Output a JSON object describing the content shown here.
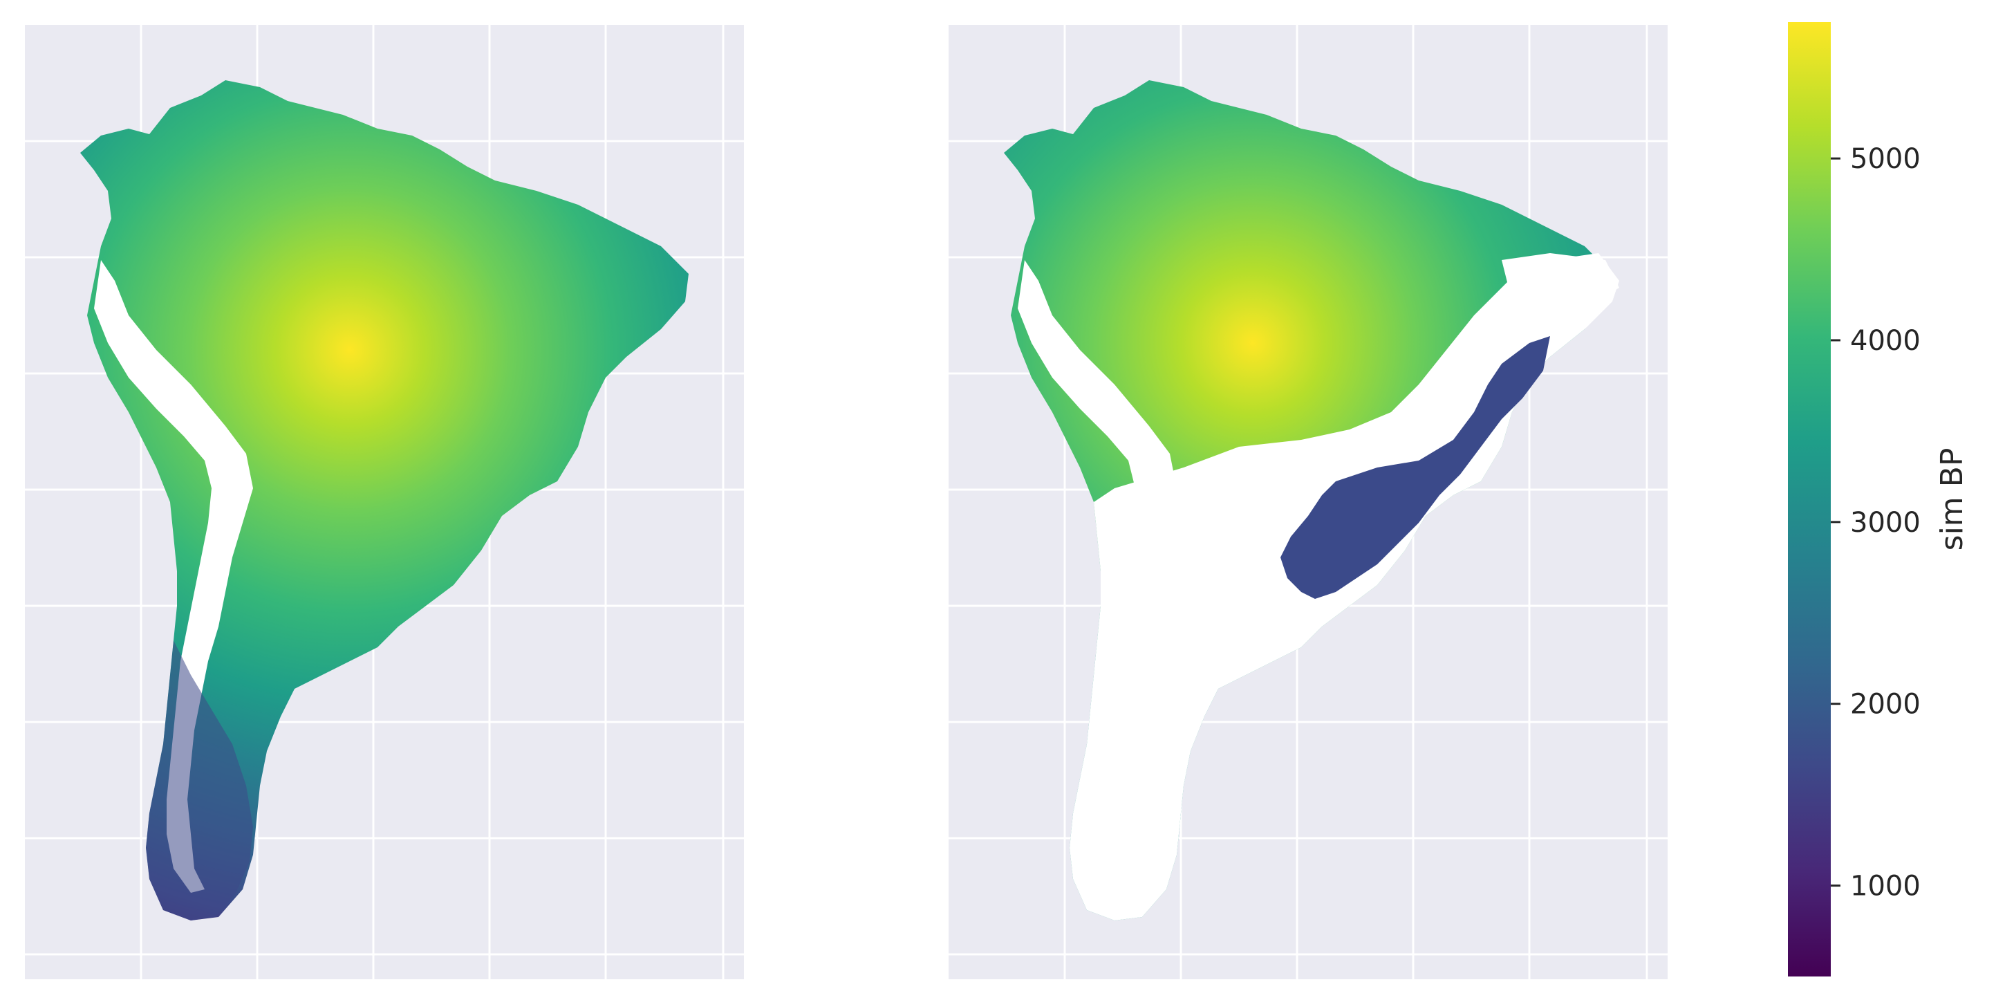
{
  "chart_data": [
    {
      "type": "heatmap",
      "panel": "left",
      "description_of_field": "simulated arrival age over South America land cells",
      "grid": true,
      "value_range": [
        500,
        5750
      ],
      "peak_value": 5750,
      "peak_region": "central-west Amazon",
      "edge_values": {
        "north_coast": 3900,
        "east_brazil": 3600,
        "patagonia": 1700
      }
    },
    {
      "type": "heatmap",
      "panel": "right",
      "grid": true,
      "value_range": [
        500,
        5750
      ],
      "peak_value": 5700,
      "peak_region": "central-west Amazon",
      "southeast_region_value": 1900
    }
  ],
  "colorbar": {
    "label": "sim BP",
    "ticks": [
      1000,
      2000,
      3000,
      4000,
      5000
    ],
    "tick_labels": [
      "1000",
      "2000",
      "3000",
      "4000",
      "5000"
    ],
    "vmin": 500,
    "vmax": 5750,
    "colormap": "viridis"
  },
  "colors": {
    "axes_background": "#eaeaf2",
    "grid": "#ffffff",
    "mask": "#ffffff",
    "text": "#262626"
  }
}
